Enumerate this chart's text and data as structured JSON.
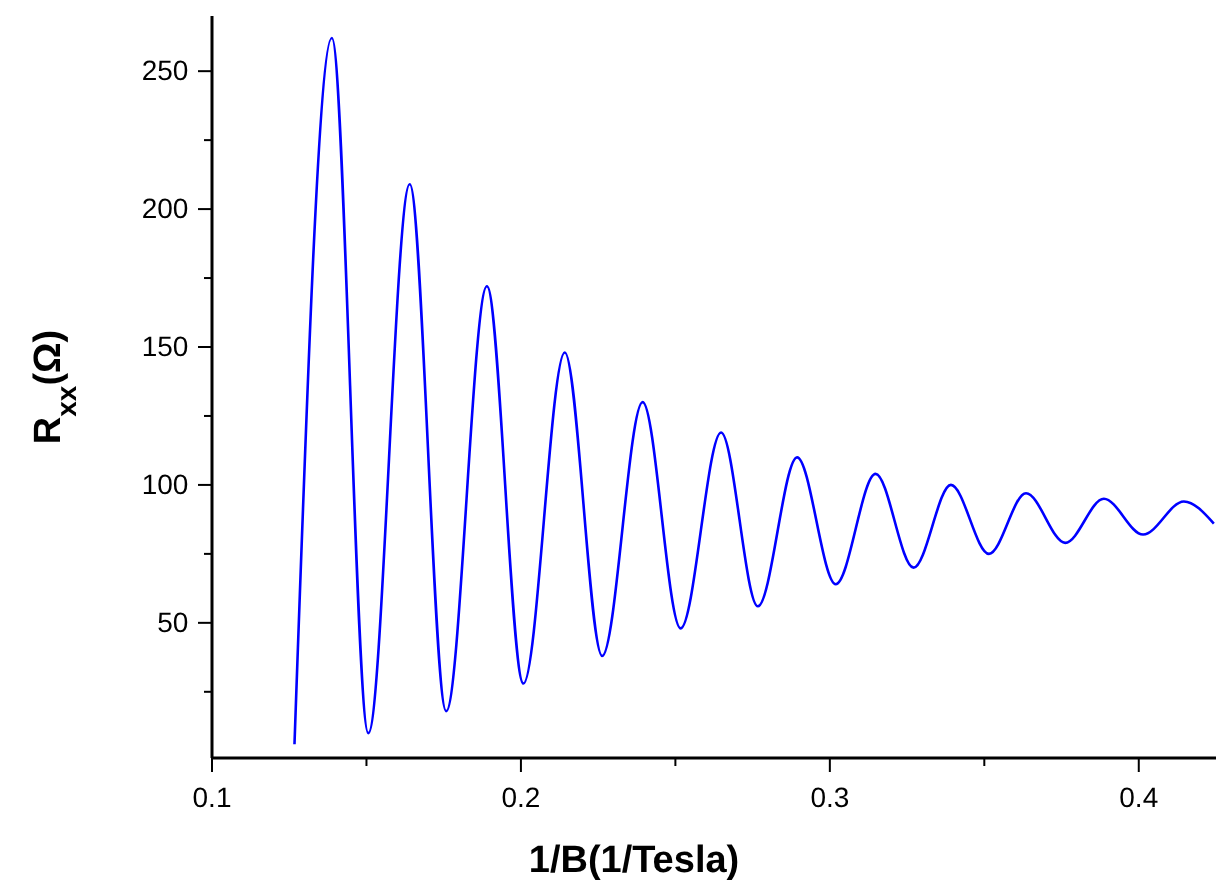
{
  "chart_data": {
    "type": "line",
    "xlabel": "1/B(1/Tesla)",
    "ylabel": "R$_{xx}$(Ω)",
    "x": [
      0.1267,
      0.1388,
      0.1506,
      0.164,
      0.1758,
      0.189,
      0.2008,
      0.2142,
      0.2263,
      0.2394,
      0.2517,
      0.2648,
      0.2767,
      0.2894,
      0.3019,
      0.3148,
      0.3271,
      0.3392,
      0.3515,
      0.3635,
      0.3762,
      0.3887,
      0.4014,
      0.4146,
      0.4243
    ],
    "series": [
      {
        "color": "#0000ff",
        "values": [
          6,
          262,
          10,
          209,
          18,
          172,
          28,
          148,
          38,
          130,
          48,
          119,
          56,
          110,
          64,
          104,
          70,
          100,
          75,
          97,
          79,
          95,
          82,
          94,
          86
        ]
      }
    ],
    "xlim": [
      0.1,
      0.425
    ],
    "ylim": [
      1,
      270
    ],
    "xticks": [
      0.1,
      {
        "value": 0.15,
        "label": null
      },
      0.2,
      {
        "value": 0.25,
        "label": null
      },
      0.3,
      {
        "value": 0.35,
        "label": null
      },
      0.4
    ],
    "yticks": [
      {
        "value": 25,
        "label": null
      },
      50,
      {
        "value": 75,
        "label": null
      },
      100,
      {
        "value": 125,
        "label": null
      },
      150,
      {
        "value": 175,
        "label": null
      },
      200,
      {
        "value": 225,
        "label": null
      },
      250
    ],
    "grid": false,
    "marker": "none",
    "line_style": "solid"
  }
}
